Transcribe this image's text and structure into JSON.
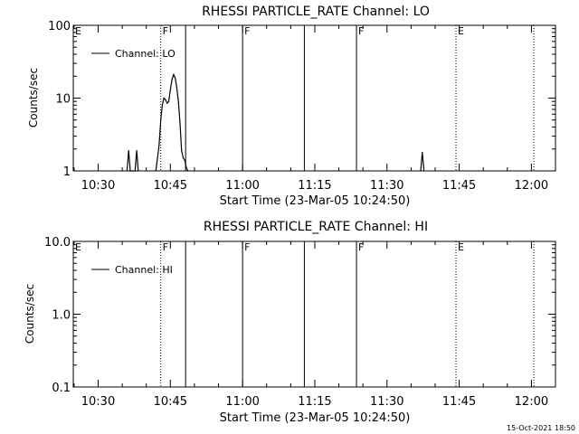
{
  "timestamp": "15-Oct-2021 18:50",
  "colors": {
    "background": "#ffffff",
    "foreground": "#000000"
  },
  "chart_data": [
    {
      "type": "line",
      "title": "RHESSI PARTICLE_RATE Channel: LO",
      "xlabel": "Start Time (23-Mar-05 10:24:50)",
      "ylabel": "Counts/sec",
      "y_scale": "log",
      "ylim": [
        1,
        100
      ],
      "xlim": [
        "10:24:50",
        "12:05:00"
      ],
      "x_ticks": [
        "10:30",
        "10:45",
        "11:00",
        "11:15",
        "11:30",
        "11:45",
        "12:00"
      ],
      "y_ticks": [
        "1",
        "10",
        "100"
      ],
      "legend": {
        "placement": "top-left",
        "entries": [
          "Channel: LO"
        ]
      },
      "series": [
        {
          "name": "Channel: LO",
          "x": [
            "10:36:00",
            "10:36:20",
            "10:36:40",
            "10:37:40",
            "10:38:00",
            "10:38:20",
            "10:42:00",
            "10:42:40",
            "10:43:00",
            "10:43:20",
            "10:43:40",
            "10:44:00",
            "10:44:20",
            "10:44:40",
            "10:45:00",
            "10:45:20",
            "10:45:40",
            "10:46:00",
            "10:46:20",
            "10:46:40",
            "10:47:00",
            "10:47:20",
            "10:47:40",
            "10:48:00",
            "10:48:20",
            "10:48:40",
            "11:37:00",
            "11:37:20",
            "11:37:40"
          ],
          "values": [
            1,
            1.9,
            1,
            1,
            1.9,
            1,
            1,
            2.3,
            5,
            8,
            10,
            9.5,
            8.5,
            9,
            13,
            18,
            21,
            19,
            14,
            9,
            4.5,
            1.9,
            1.5,
            1.4,
            1.1,
            1,
            1,
            1.8,
            1
          ]
        }
      ],
      "annotations": [
        {
          "label": "E",
          "at": "10:24:50",
          "line": "none"
        },
        {
          "label": "F",
          "at": "10:43:00",
          "line": "dotted"
        },
        {
          "label": "",
          "at": "10:48:10",
          "line": "solid"
        },
        {
          "label": "F",
          "at": "11:00:00",
          "line": "solid"
        },
        {
          "label": "",
          "at": "11:12:50",
          "line": "solid"
        },
        {
          "label": "F",
          "at": "11:23:40",
          "line": "solid"
        },
        {
          "label": "E",
          "at": "11:44:20",
          "line": "dotted"
        },
        {
          "label": "",
          "at": "12:00:30",
          "line": "dotted"
        }
      ]
    },
    {
      "type": "line",
      "title": "RHESSI PARTICLE_RATE Channel: HI",
      "xlabel": "Start Time (23-Mar-05 10:24:50)",
      "ylabel": "Counts/sec",
      "y_scale": "log",
      "ylim": [
        0.1,
        10
      ],
      "xlim": [
        "10:24:50",
        "12:05:00"
      ],
      "x_ticks": [
        "10:30",
        "10:45",
        "11:00",
        "11:15",
        "11:30",
        "11:45",
        "12:00"
      ],
      "y_ticks": [
        "0.1",
        "1.0",
        "10.0"
      ],
      "legend": {
        "placement": "top-left",
        "entries": [
          "Channel: HI"
        ]
      },
      "series": [
        {
          "name": "Channel: HI",
          "x": [],
          "values": []
        }
      ],
      "annotations": [
        {
          "label": "E",
          "at": "10:24:50",
          "line": "none"
        },
        {
          "label": "F",
          "at": "10:43:00",
          "line": "dotted"
        },
        {
          "label": "",
          "at": "10:48:10",
          "line": "solid"
        },
        {
          "label": "F",
          "at": "11:00:00",
          "line": "solid"
        },
        {
          "label": "",
          "at": "11:12:50",
          "line": "solid"
        },
        {
          "label": "F",
          "at": "11:23:40",
          "line": "solid"
        },
        {
          "label": "E",
          "at": "11:44:20",
          "line": "dotted"
        },
        {
          "label": "",
          "at": "12:00:30",
          "line": "dotted"
        }
      ]
    }
  ]
}
